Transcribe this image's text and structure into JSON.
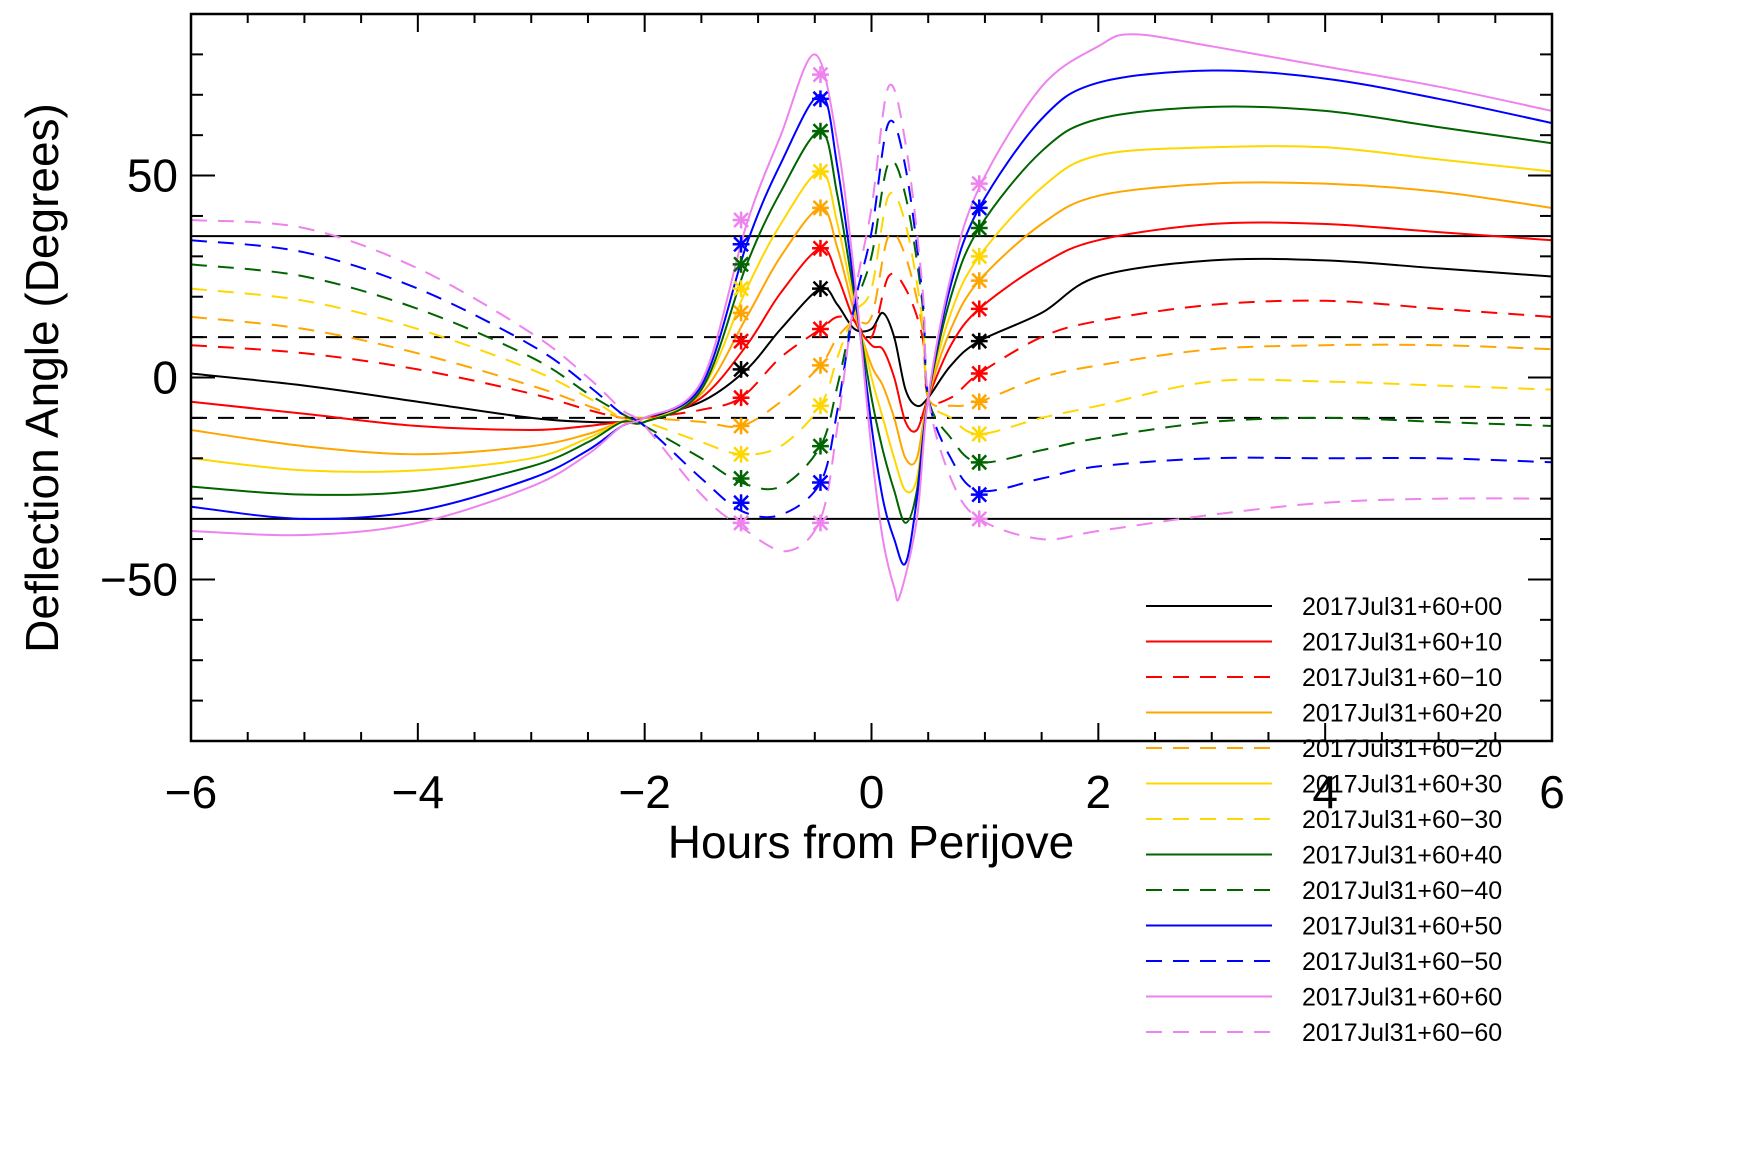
{
  "chart_data": {
    "type": "line",
    "title": "",
    "xlabel": "Hours from Perijove",
    "ylabel": "Deflection Angle (Degrees)",
    "xlim": [
      -6,
      6
    ],
    "ylim": [
      -90,
      90
    ],
    "x_ticks": [
      -6,
      -4,
      -2,
      0,
      2,
      4,
      6
    ],
    "y_ticks": [
      -50,
      0,
      50
    ],
    "grid": false,
    "legend_position": "bottom-right",
    "reference_lines": [
      {
        "y": 35,
        "style": "solid",
        "color": "#000000"
      },
      {
        "y": -35,
        "style": "solid",
        "color": "#000000"
      },
      {
        "y": 10,
        "style": "dashed",
        "color": "#000000"
      },
      {
        "y": -10,
        "style": "dashed",
        "color": "#000000"
      }
    ],
    "series": [
      {
        "name": "2017Jul31+60+00",
        "color": "#000000",
        "style": "solid",
        "x": [
          -6,
          -5,
          -4,
          -3,
          -2.5,
          -2.2,
          -2,
          -1.5,
          -1.1,
          -0.8,
          -0.45,
          -0.3,
          -0.15,
          0,
          0.1,
          0.2,
          0.3,
          0.4,
          0.5,
          0.7,
          0.95,
          1.5,
          2,
          3,
          4,
          5,
          6
        ],
        "y": [
          1,
          -2,
          -6,
          -10,
          -11,
          -11,
          -10,
          -6,
          2,
          12,
          22,
          18,
          12,
          12,
          16,
          10,
          -3,
          -7,
          -5,
          3,
          9,
          16,
          25,
          29,
          29,
          27,
          25
        ],
        "markers": [
          [
            -1.15,
            2
          ],
          [
            -0.45,
            22
          ],
          [
            0.95,
            9
          ]
        ]
      },
      {
        "name": "2017Jul31+60+10",
        "color": "#ff0000",
        "style": "solid",
        "x": [
          -6,
          -5,
          -4,
          -3,
          -2.5,
          -2.2,
          -2,
          -1.5,
          -1.1,
          -0.8,
          -0.45,
          -0.3,
          -0.15,
          0,
          0.1,
          0.2,
          0.3,
          0.4,
          0.5,
          0.7,
          0.95,
          1.5,
          2,
          3,
          4,
          5,
          6
        ],
        "y": [
          -6,
          -9,
          -12,
          -13,
          -12,
          -11,
          -11,
          -5,
          8,
          21,
          32,
          25,
          14,
          8,
          7,
          0,
          -11,
          -13,
          -5,
          8,
          17,
          28,
          34,
          38,
          38,
          36,
          34
        ],
        "markers": [
          [
            -1.15,
            9
          ],
          [
            -0.45,
            32
          ],
          [
            0.95,
            17
          ]
        ]
      },
      {
        "name": "2017Jul31+60−10",
        "color": "#ff0000",
        "style": "dashed",
        "x": [
          -6,
          -5,
          -4,
          -3,
          -2.5,
          -2.2,
          -2,
          -1.5,
          -1.15,
          -0.8,
          -0.45,
          -0.3,
          -0.15,
          0,
          0.15,
          0.3,
          0.45,
          0.5,
          0.7,
          0.95,
          1.5,
          2,
          3,
          4,
          5,
          6
        ],
        "y": [
          8,
          6,
          2,
          -4,
          -8,
          -10,
          -10,
          -8,
          -5,
          5,
          12,
          15,
          14,
          10,
          25,
          22,
          10,
          -5,
          -5,
          1,
          10,
          14,
          18,
          19,
          17,
          15
        ],
        "markers": [
          [
            -1.15,
            -5
          ],
          [
            -0.45,
            12
          ],
          [
            0.95,
            1
          ]
        ]
      },
      {
        "name": "2017Jul31+60+20",
        "color": "#ffa500",
        "style": "solid",
        "x": [
          -6,
          -5,
          -4,
          -3,
          -2.5,
          -2.2,
          -2,
          -1.5,
          -1.1,
          -0.8,
          -0.45,
          -0.3,
          -0.15,
          0,
          0.1,
          0.2,
          0.3,
          0.4,
          0.5,
          0.7,
          0.95,
          1.5,
          2,
          3,
          4,
          5,
          6
        ],
        "y": [
          -13,
          -17,
          -19,
          -17,
          -14,
          -11,
          -11,
          -4,
          15,
          30,
          42,
          32,
          16,
          3,
          -2,
          -10,
          -20,
          -20,
          -5,
          12,
          24,
          38,
          45,
          48,
          48,
          46,
          42
        ],
        "markers": [
          [
            -1.15,
            16
          ],
          [
            -0.45,
            42
          ],
          [
            0.95,
            24
          ]
        ]
      },
      {
        "name": "2017Jul31+60−20",
        "color": "#ffa500",
        "style": "dashed",
        "x": [
          -6,
          -5,
          -4,
          -3,
          -2.5,
          -2.2,
          -2,
          -1.5,
          -1.15,
          -0.8,
          -0.45,
          -0.3,
          -0.15,
          0,
          0.15,
          0.3,
          0.45,
          0.5,
          0.7,
          0.95,
          1.5,
          2,
          3,
          4,
          5,
          6
        ],
        "y": [
          15,
          12,
          6,
          -2,
          -7,
          -10,
          -10,
          -11,
          -12,
          -6,
          3,
          10,
          14,
          15,
          35,
          30,
          12,
          -5,
          -7,
          -6,
          0,
          3,
          7,
          8,
          8,
          7
        ],
        "markers": [
          [
            -1.15,
            -12
          ],
          [
            -0.45,
            3
          ],
          [
            0.95,
            -6
          ]
        ]
      },
      {
        "name": "2017Jul31+60+30",
        "color": "#ffd700",
        "style": "solid",
        "x": [
          -6,
          -5,
          -4,
          -3,
          -2.5,
          -2.2,
          -2,
          -1.5,
          -1.1,
          -0.8,
          -0.45,
          -0.3,
          -0.15,
          0,
          0.1,
          0.2,
          0.3,
          0.4,
          0.5,
          0.7,
          0.95,
          1.5,
          2,
          3,
          4,
          5,
          6
        ],
        "y": [
          -20,
          -23,
          -23,
          -20,
          -15,
          -11,
          -11,
          -3,
          22,
          38,
          51,
          38,
          18,
          0,
          -10,
          -20,
          -28,
          -25,
          -5,
          16,
          30,
          47,
          55,
          57,
          57,
          54,
          51
        ],
        "markers": [
          [
            -1.15,
            22
          ],
          [
            -0.45,
            51
          ],
          [
            0.95,
            30
          ]
        ]
      },
      {
        "name": "2017Jul31+60−30",
        "color": "#ffd700",
        "style": "dashed",
        "x": [
          -6,
          -5,
          -4,
          -3,
          -2.5,
          -2.2,
          -2,
          -1.5,
          -1.15,
          -0.8,
          -0.45,
          -0.3,
          -0.15,
          0,
          0.15,
          0.3,
          0.45,
          0.5,
          0.7,
          0.95,
          1.5,
          2,
          3,
          4,
          5,
          6
        ],
        "y": [
          22,
          19,
          12,
          2,
          -5,
          -10,
          -11,
          -16,
          -19,
          -17,
          -7,
          5,
          16,
          22,
          45,
          38,
          14,
          -5,
          -10,
          -14,
          -10,
          -7,
          -1,
          -1,
          -2,
          -3
        ],
        "markers": [
          [
            -1.15,
            -19
          ],
          [
            -0.45,
            -7
          ],
          [
            0.95,
            -14
          ]
        ]
      },
      {
        "name": "2017Jul31+60+40",
        "color": "#006400",
        "style": "solid",
        "x": [
          -6,
          -5,
          -4,
          -3,
          -2.5,
          -2.2,
          -2,
          -1.5,
          -1.1,
          -0.8,
          -0.45,
          -0.3,
          -0.15,
          0,
          0.1,
          0.2,
          0.3,
          0.4,
          0.5,
          0.7,
          0.95,
          1.5,
          2,
          3,
          4,
          5,
          6
        ],
        "y": [
          -27,
          -29,
          -28,
          -22,
          -16,
          -11,
          -11,
          -3,
          28,
          46,
          61,
          45,
          20,
          -5,
          -18,
          -28,
          -36,
          -28,
          -5,
          20,
          37,
          56,
          64,
          67,
          66,
          62,
          58
        ],
        "markers": [
          [
            -1.15,
            28
          ],
          [
            -0.45,
            61
          ],
          [
            0.95,
            37
          ]
        ]
      },
      {
        "name": "2017Jul31+60−40",
        "color": "#006400",
        "style": "dashed",
        "x": [
          -6,
          -5,
          -4,
          -3,
          -2.5,
          -2.2,
          -2,
          -1.5,
          -1.15,
          -0.8,
          -0.45,
          -0.3,
          -0.15,
          0,
          0.15,
          0.3,
          0.45,
          0.5,
          0.7,
          0.95,
          1.5,
          2,
          3,
          4,
          5,
          6
        ],
        "y": [
          28,
          25,
          17,
          5,
          -4,
          -9,
          -12,
          -20,
          -26,
          -27,
          -17,
          -2,
          17,
          30,
          53,
          45,
          18,
          -5,
          -15,
          -21,
          -18,
          -15,
          -11,
          -10,
          -11,
          -12
        ],
        "markers": [
          [
            -1.15,
            -25
          ],
          [
            -0.45,
            -17
          ],
          [
            0.95,
            -21
          ]
        ]
      },
      {
        "name": "2017Jul31+60+50",
        "color": "#0000ff",
        "style": "solid",
        "x": [
          -6,
          -5,
          -4,
          -3,
          -2.5,
          -2.2,
          -2,
          -1.5,
          -1.1,
          -0.8,
          -0.45,
          -0.3,
          -0.15,
          0,
          0.1,
          0.2,
          0.3,
          0.4,
          0.5,
          0.7,
          0.95,
          1.5,
          2,
          3,
          4,
          5,
          6
        ],
        "y": [
          -32,
          -35,
          -33,
          -25,
          -18,
          -12,
          -10,
          -2,
          33,
          53,
          70,
          52,
          22,
          -12,
          -30,
          -40,
          -46,
          -30,
          -5,
          23,
          42,
          64,
          73,
          76,
          74,
          69,
          63
        ],
        "markers": [
          [
            -1.15,
            33
          ],
          [
            -0.45,
            69
          ],
          [
            0.95,
            42
          ]
        ]
      },
      {
        "name": "2017Jul31+60−50",
        "color": "#0000ff",
        "style": "dashed",
        "x": [
          -6,
          -5,
          -4,
          -3,
          -2.5,
          -2.2,
          -2,
          -1.5,
          -1.15,
          -0.8,
          -0.45,
          -0.3,
          -0.15,
          0,
          0.15,
          0.3,
          0.45,
          0.5,
          0.7,
          0.95,
          1.5,
          2,
          3,
          4,
          5,
          6
        ],
        "y": [
          34,
          31,
          22,
          8,
          -2,
          -9,
          -12,
          -25,
          -33,
          -34,
          -26,
          -8,
          18,
          36,
          63,
          52,
          20,
          -5,
          -20,
          -28,
          -25,
          -22,
          -20,
          -20,
          -20,
          -21
        ],
        "markers": [
          [
            -1.15,
            -31
          ],
          [
            -0.45,
            -26
          ],
          [
            0.95,
            -29
          ]
        ]
      },
      {
        "name": "2017Jul31+60+60",
        "color": "#ee82ee",
        "style": "solid",
        "x": [
          -6,
          -5,
          -4,
          -3,
          -2.5,
          -2.2,
          -2,
          -1.5,
          -1.1,
          -0.8,
          -0.5,
          -0.3,
          -0.15,
          0,
          0.1,
          0.2,
          0.25,
          0.4,
          0.5,
          0.7,
          0.95,
          1.5,
          2,
          2.3,
          3,
          4,
          5,
          6
        ],
        "y": [
          -38,
          -39,
          -36,
          -27,
          -19,
          -12,
          -10,
          -1,
          38,
          60,
          80,
          58,
          25,
          -18,
          -40,
          -52,
          -54,
          -35,
          -5,
          25,
          47,
          72,
          82,
          85,
          82,
          77,
          72,
          66
        ],
        "markers": [
          [
            -1.15,
            39
          ],
          [
            -0.45,
            75
          ],
          [
            0.95,
            48
          ]
        ]
      },
      {
        "name": "2017Jul31+60−60",
        "color": "#ee82ee",
        "style": "dashed",
        "x": [
          -6,
          -5,
          -4,
          -3,
          -2.5,
          -2.2,
          -2,
          -1.5,
          -1.15,
          -0.75,
          -0.45,
          -0.3,
          -0.15,
          0,
          0.15,
          0.3,
          0.45,
          0.5,
          0.7,
          0.95,
          1.5,
          2,
          3,
          4,
          5,
          6
        ],
        "y": [
          39,
          37,
          27,
          11,
          0,
          -8,
          -12,
          -29,
          -37,
          -43,
          -35,
          -12,
          20,
          42,
          72,
          58,
          22,
          -5,
          -25,
          -35,
          -40,
          -38,
          -34,
          -31,
          -30,
          -30
        ],
        "markers": [
          [
            -1.15,
            -36
          ],
          [
            -0.45,
            -36
          ],
          [
            0.95,
            -35
          ]
        ]
      }
    ]
  }
}
